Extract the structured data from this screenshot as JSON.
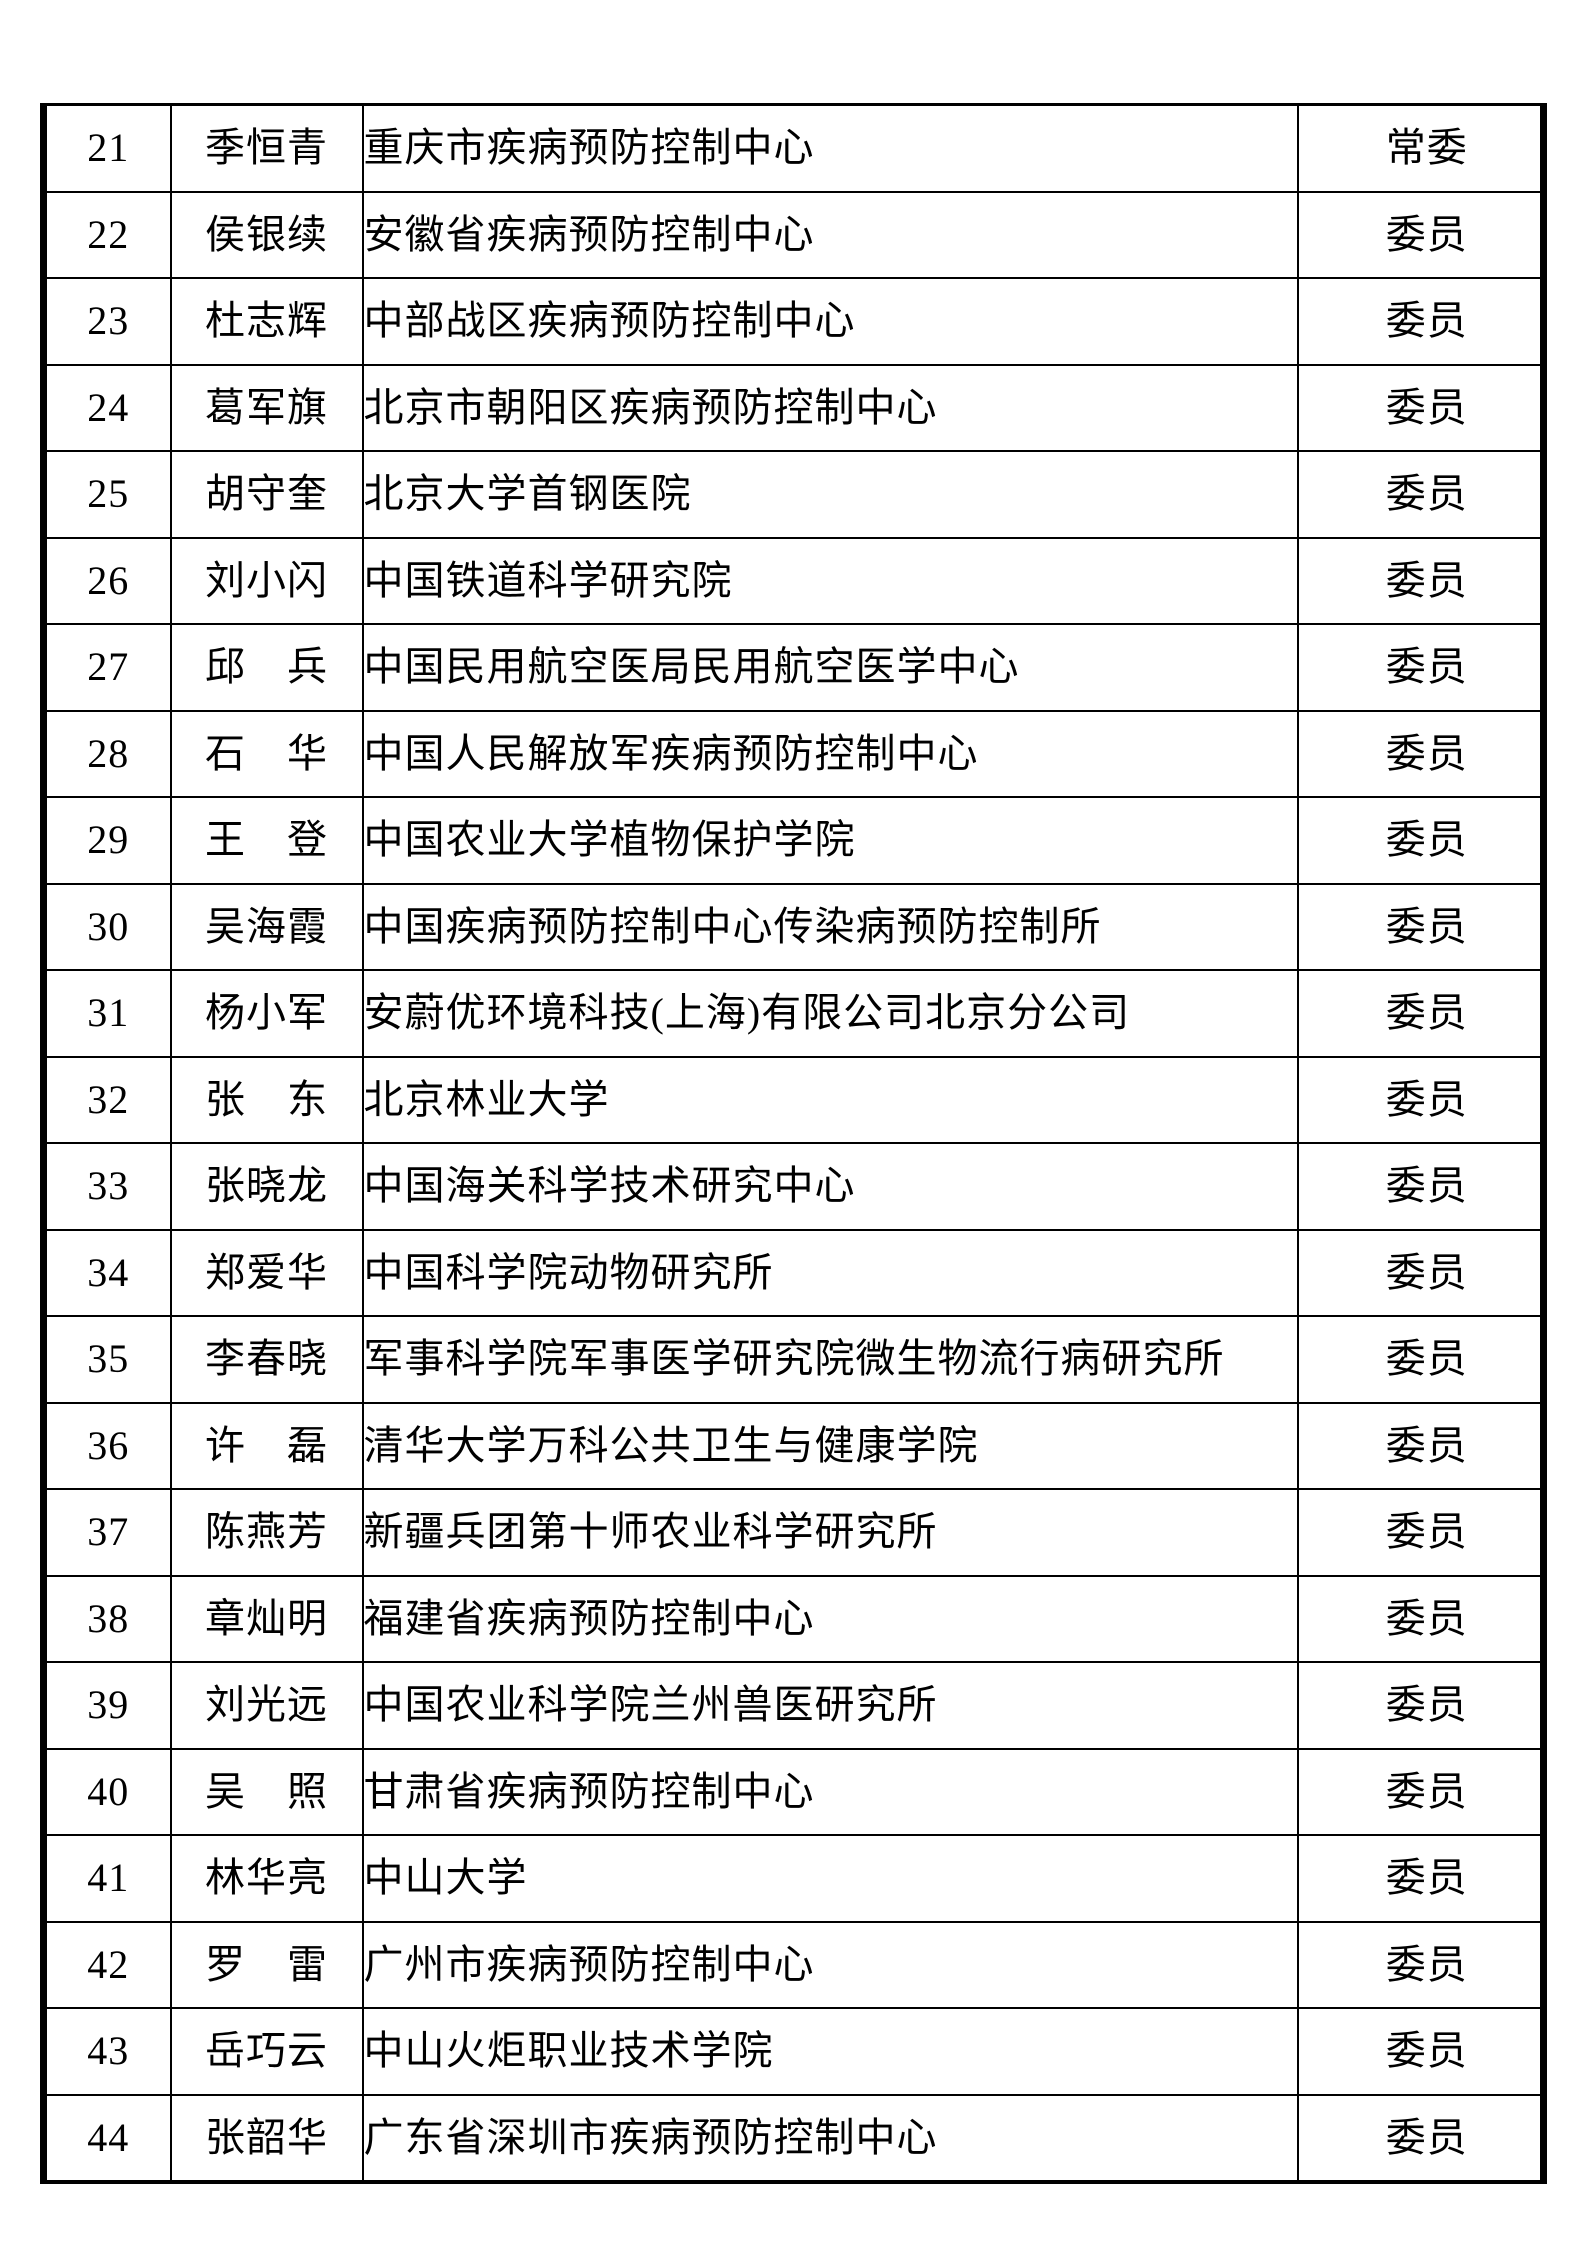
{
  "page": {
    "background_color": "#ffffff",
    "border_color": "#000000",
    "text_color": "#000000"
  },
  "table": {
    "rows": [
      {
        "no": "21",
        "name": "季恒青",
        "institution": "重庆市疾病预防控制中心",
        "role": "常委"
      },
      {
        "no": "22",
        "name": "侯银续",
        "institution": "安徽省疾病预防控制中心",
        "role": "委员"
      },
      {
        "no": "23",
        "name": "杜志辉",
        "institution": "中部战区疾病预防控制中心",
        "role": "委员"
      },
      {
        "no": "24",
        "name": "葛军旗",
        "institution": "北京市朝阳区疾病预防控制中心",
        "role": "委员"
      },
      {
        "no": "25",
        "name": "胡守奎",
        "institution": "北京大学首钢医院",
        "role": "委员"
      },
      {
        "no": "26",
        "name": "刘小闪",
        "institution": "中国铁道科学研究院",
        "role": "委员"
      },
      {
        "no": "27",
        "name": "邱　兵",
        "institution": "中国民用航空医局民用航空医学中心",
        "role": "委员"
      },
      {
        "no": "28",
        "name": "石　华",
        "institution": "中国人民解放军疾病预防控制中心",
        "role": "委员"
      },
      {
        "no": "29",
        "name": "王　登",
        "institution": "中国农业大学植物保护学院",
        "role": "委员"
      },
      {
        "no": "30",
        "name": "吴海霞",
        "institution": "中国疾病预防控制中心传染病预防控制所",
        "role": "委员"
      },
      {
        "no": "31",
        "name": "杨小军",
        "institution": "安蔚优环境科技(上海)有限公司北京分公司",
        "role": "委员"
      },
      {
        "no": "32",
        "name": "张　东",
        "institution": "北京林业大学",
        "role": "委员"
      },
      {
        "no": "33",
        "name": "张晓龙",
        "institution": "中国海关科学技术研究中心",
        "role": "委员"
      },
      {
        "no": "34",
        "name": "郑爱华",
        "institution": "中国科学院动物研究所",
        "role": "委员"
      },
      {
        "no": "35",
        "name": "李春晓",
        "institution": "军事科学院军事医学研究院微生物流行病研究所",
        "role": "委员"
      },
      {
        "no": "36",
        "name": "许　磊",
        "institution": "清华大学万科公共卫生与健康学院",
        "role": "委员"
      },
      {
        "no": "37",
        "name": "陈燕芳",
        "institution": "新疆兵团第十师农业科学研究所",
        "role": "委员"
      },
      {
        "no": "38",
        "name": "章灿明",
        "institution": "福建省疾病预防控制中心",
        "role": "委员"
      },
      {
        "no": "39",
        "name": "刘光远",
        "institution": "中国农业科学院兰州兽医研究所",
        "role": "委员"
      },
      {
        "no": "40",
        "name": "吴　照",
        "institution": "甘肃省疾病预防控制中心",
        "role": "委员"
      },
      {
        "no": "41",
        "name": "林华亮",
        "institution": "中山大学",
        "role": "委员"
      },
      {
        "no": "42",
        "name": "罗　雷",
        "institution": "广州市疾病预防控制中心",
        "role": "委员"
      },
      {
        "no": "43",
        "name": "岳巧云",
        "institution": "中山火炬职业技术学院",
        "role": "委员"
      },
      {
        "no": "44",
        "name": "张韶华",
        "institution": "广东省深圳市疾病预防控制中心",
        "role": "委员"
      }
    ]
  }
}
